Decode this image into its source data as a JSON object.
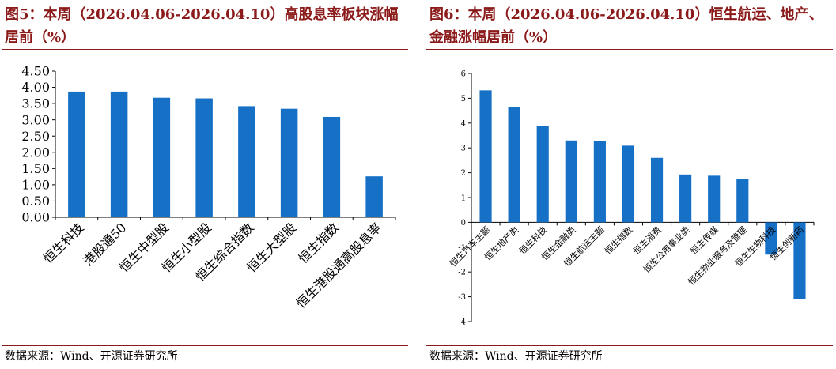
{
  "colors": {
    "title": "#8B1A1A",
    "bar": "#1570C6",
    "rule": "#8B1A1A"
  },
  "left": {
    "title": "图5：本周（2026.04.06-2026.04.10）高股息率板块涨幅居前（%）",
    "source": "数据来源：Wind、开源证券研究所",
    "chart_data": {
      "type": "bar",
      "categories": [
        "恒生科技",
        "港股通50",
        "恒生中型股",
        "恒生小型股",
        "恒生综合指数",
        "恒生大型股",
        "恒生指数",
        "恒生港股通高股息率"
      ],
      "values": [
        3.87,
        3.87,
        3.68,
        3.66,
        3.42,
        3.34,
        3.09,
        1.26
      ],
      "ylim": [
        0,
        4.5
      ],
      "yticks": [
        "0.00",
        "0.50",
        "1.00",
        "1.50",
        "2.00",
        "2.50",
        "3.00",
        "3.50",
        "4.00",
        "4.50"
      ],
      "grid": false
    }
  },
  "right": {
    "title": "图6：本周（2026.04.06-2026.04.10）恒生航运、地产、金融涨幅居前（%）",
    "source": "数据来源：Wind、开源证券研究所",
    "chart_data": {
      "type": "bar",
      "categories": [
        "恒生汽车主题",
        "恒生地产类",
        "恒生科技",
        "恒生金融类",
        "恒生航运主题",
        "恒生指数",
        "恒生消费",
        "恒生公用事业类",
        "恒生传媒",
        "恒生物业服务及管理",
        "恒生生物科技",
        "恒生创新药"
      ],
      "values": [
        5.32,
        4.65,
        3.87,
        3.3,
        3.28,
        3.09,
        2.6,
        1.93,
        1.88,
        1.75,
        -1.3,
        -3.1
      ],
      "ylim": [
        -4,
        6
      ],
      "yticks": [
        "-4",
        "-3",
        "-2",
        "-1",
        "0",
        "1",
        "2",
        "3",
        "4",
        "5",
        "6"
      ],
      "grid": false
    }
  }
}
